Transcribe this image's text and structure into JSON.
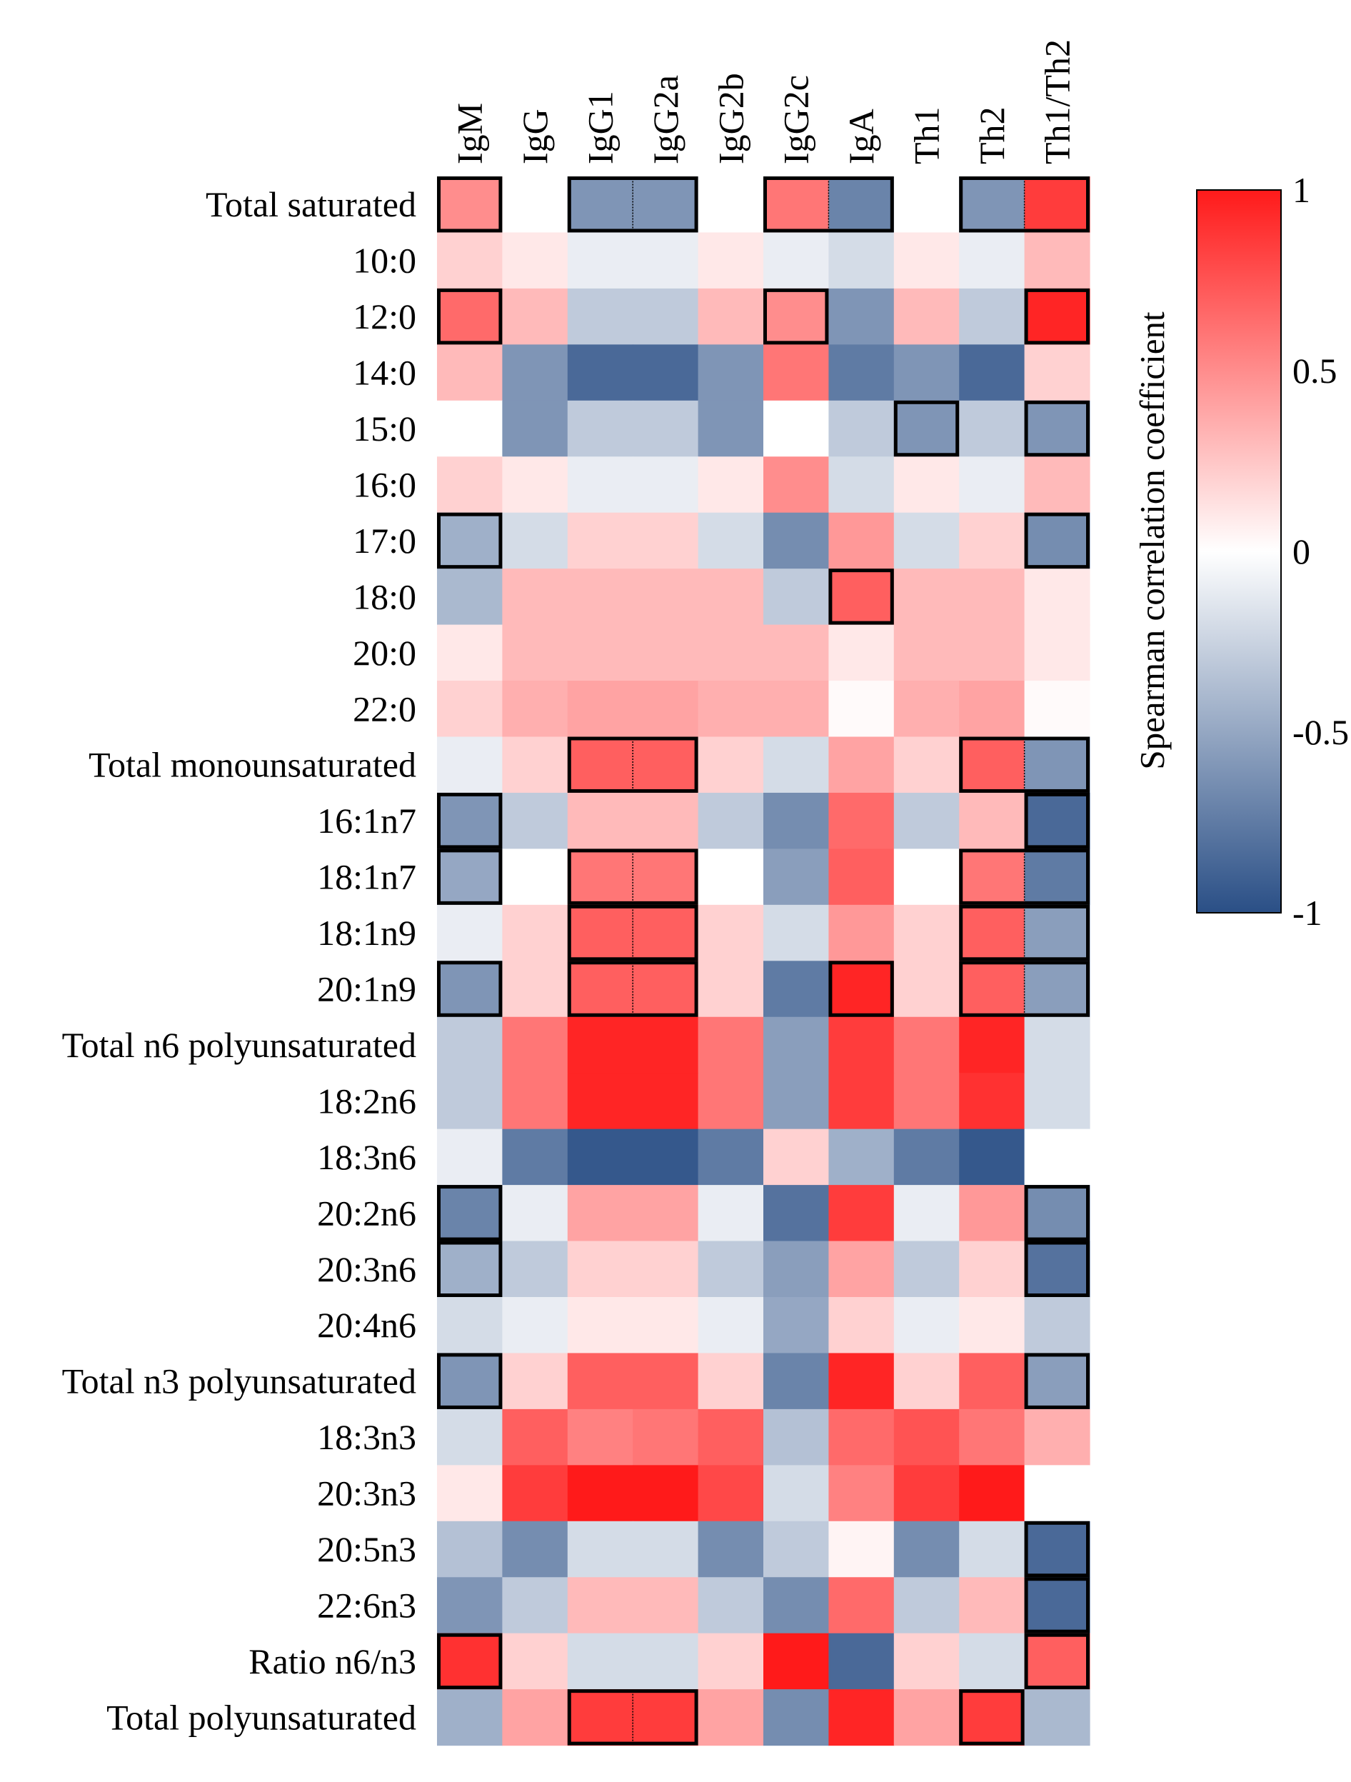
{
  "chart_data": {
    "type": "heatmap",
    "title": "",
    "columns": [
      "IgM",
      "IgG",
      "IgG1",
      "IgG2a",
      "IgG2b",
      "IgG2c",
      "IgA",
      "Th1",
      "Th2",
      "Th1/Th2"
    ],
    "rows": [
      "Total saturated",
      "10:0",
      "12:0",
      "14:0",
      "15:0",
      "16:0",
      "17:0",
      "18:0",
      "20:0",
      "22:0",
      "Total monounsaturated",
      "16:1n7",
      "18:1n7",
      "18:1n9",
      "20:1n9",
      "Total n6 polyunsaturated",
      "18:2n6",
      "18:3n6",
      "20:2n6",
      "20:3n6",
      "20:4n6",
      "Total n3 polyunsaturated",
      "18:3n3",
      "20:3n3",
      "20:5n3",
      "22:6n3",
      "Ratio n6/n3",
      "Total polyunsaturated"
    ],
    "values": [
      [
        0.5,
        0.0,
        -0.6,
        -0.6,
        0.0,
        0.6,
        -0.7,
        0.0,
        -0.6,
        0.85
      ],
      [
        0.2,
        0.1,
        -0.1,
        -0.1,
        0.1,
        -0.1,
        -0.2,
        0.1,
        -0.1,
        0.3
      ],
      [
        0.65,
        0.3,
        -0.3,
        -0.3,
        0.3,
        0.5,
        -0.6,
        0.3,
        -0.3,
        0.95
      ],
      [
        0.3,
        -0.6,
        -0.85,
        -0.85,
        -0.6,
        0.6,
        -0.75,
        -0.6,
        -0.85,
        0.2
      ],
      [
        0.0,
        -0.6,
        -0.3,
        -0.3,
        -0.6,
        0.0,
        -0.3,
        -0.6,
        -0.3,
        -0.6
      ],
      [
        0.2,
        0.1,
        -0.1,
        -0.1,
        0.1,
        0.5,
        -0.2,
        0.1,
        -0.1,
        0.3
      ],
      [
        -0.45,
        -0.2,
        0.2,
        0.2,
        -0.2,
        -0.65,
        0.45,
        -0.2,
        0.2,
        -0.65
      ],
      [
        -0.4,
        0.3,
        0.3,
        0.3,
        0.3,
        -0.3,
        0.7,
        0.3,
        0.3,
        0.1
      ],
      [
        0.1,
        0.3,
        0.3,
        0.3,
        0.3,
        0.3,
        0.1,
        0.3,
        0.3,
        0.1
      ],
      [
        0.2,
        0.35,
        0.4,
        0.4,
        0.35,
        0.35,
        0.02,
        0.35,
        0.4,
        0.02
      ],
      [
        -0.1,
        0.2,
        0.7,
        0.7,
        0.2,
        -0.2,
        0.4,
        0.2,
        0.7,
        -0.6
      ],
      [
        -0.6,
        -0.3,
        0.3,
        0.3,
        -0.3,
        -0.65,
        0.65,
        -0.3,
        0.3,
        -0.85
      ],
      [
        -0.5,
        0.0,
        0.6,
        0.6,
        0.0,
        -0.55,
        0.7,
        0.0,
        0.6,
        -0.75
      ],
      [
        -0.1,
        0.2,
        0.7,
        0.7,
        0.2,
        -0.2,
        0.45,
        0.2,
        0.7,
        -0.55
      ],
      [
        -0.6,
        0.2,
        0.7,
        0.7,
        0.2,
        -0.75,
        0.95,
        0.2,
        0.7,
        -0.55
      ],
      [
        -0.3,
        0.6,
        0.95,
        0.95,
        0.6,
        -0.55,
        0.85,
        0.6,
        0.95,
        -0.2
      ],
      [
        -0.3,
        0.6,
        0.95,
        0.95,
        0.6,
        -0.55,
        0.85,
        0.6,
        0.9,
        -0.2
      ],
      [
        -0.1,
        -0.75,
        -0.95,
        -0.95,
        -0.75,
        0.2,
        -0.45,
        -0.75,
        -0.95,
        0.0
      ],
      [
        -0.7,
        -0.1,
        0.4,
        0.4,
        -0.1,
        -0.8,
        0.85,
        -0.1,
        0.45,
        -0.65
      ],
      [
        -0.45,
        -0.3,
        0.2,
        0.2,
        -0.3,
        -0.55,
        0.4,
        -0.3,
        0.2,
        -0.8
      ],
      [
        -0.2,
        -0.1,
        0.1,
        0.1,
        -0.1,
        -0.5,
        0.2,
        -0.1,
        0.1,
        -0.3
      ],
      [
        -0.6,
        0.2,
        0.7,
        0.7,
        0.2,
        -0.7,
        0.95,
        0.2,
        0.7,
        -0.55
      ],
      [
        -0.2,
        0.7,
        0.55,
        0.6,
        0.7,
        -0.35,
        0.65,
        0.75,
        0.6,
        0.35
      ],
      [
        0.1,
        0.85,
        1.0,
        1.0,
        0.8,
        -0.2,
        0.55,
        0.85,
        1.0,
        0.0
      ],
      [
        -0.35,
        -0.65,
        -0.2,
        -0.2,
        -0.65,
        -0.3,
        0.05,
        -0.65,
        -0.2,
        -0.85
      ],
      [
        -0.6,
        -0.3,
        0.3,
        0.3,
        -0.3,
        -0.65,
        0.65,
        -0.3,
        0.3,
        -0.85
      ],
      [
        0.9,
        0.2,
        -0.2,
        -0.2,
        0.2,
        1.0,
        -0.85,
        0.2,
        -0.2,
        0.7
      ],
      [
        -0.45,
        0.4,
        0.85,
        0.85,
        0.4,
        -0.65,
        0.95,
        0.4,
        0.85,
        -0.4
      ]
    ],
    "significant": [
      [
        true,
        false,
        true,
        true,
        false,
        true,
        true,
        false,
        true,
        true
      ],
      [
        false,
        false,
        false,
        false,
        false,
        false,
        false,
        false,
        false,
        false
      ],
      [
        true,
        false,
        false,
        false,
        false,
        true,
        false,
        false,
        false,
        true
      ],
      [
        false,
        false,
        false,
        false,
        false,
        false,
        false,
        false,
        false,
        false
      ],
      [
        false,
        false,
        false,
        false,
        false,
        false,
        false,
        true,
        false,
        true
      ],
      [
        false,
        false,
        false,
        false,
        false,
        false,
        false,
        false,
        false,
        false
      ],
      [
        true,
        false,
        false,
        false,
        false,
        false,
        false,
        false,
        false,
        true
      ],
      [
        false,
        false,
        false,
        false,
        false,
        false,
        true,
        false,
        false,
        false
      ],
      [
        false,
        false,
        false,
        false,
        false,
        false,
        false,
        false,
        false,
        false
      ],
      [
        false,
        false,
        false,
        false,
        false,
        false,
        false,
        false,
        false,
        false
      ],
      [
        false,
        false,
        true,
        true,
        false,
        false,
        false,
        false,
        true,
        true
      ],
      [
        true,
        false,
        false,
        false,
        false,
        false,
        false,
        false,
        false,
        true
      ],
      [
        true,
        false,
        true,
        true,
        false,
        false,
        false,
        false,
        true,
        true
      ],
      [
        false,
        false,
        true,
        true,
        false,
        false,
        false,
        false,
        true,
        true
      ],
      [
        true,
        false,
        true,
        true,
        false,
        false,
        true,
        false,
        true,
        true
      ],
      [
        false,
        false,
        false,
        false,
        false,
        false,
        false,
        false,
        false,
        false
      ],
      [
        false,
        false,
        false,
        false,
        false,
        false,
        false,
        false,
        false,
        false
      ],
      [
        false,
        false,
        false,
        false,
        false,
        false,
        false,
        false,
        false,
        false
      ],
      [
        true,
        false,
        false,
        false,
        false,
        false,
        false,
        false,
        false,
        true
      ],
      [
        true,
        false,
        false,
        false,
        false,
        false,
        false,
        false,
        false,
        true
      ],
      [
        false,
        false,
        false,
        false,
        false,
        false,
        false,
        false,
        false,
        false
      ],
      [
        true,
        false,
        false,
        false,
        false,
        false,
        false,
        false,
        false,
        true
      ],
      [
        false,
        false,
        false,
        false,
        false,
        false,
        false,
        false,
        false,
        false
      ],
      [
        false,
        false,
        false,
        false,
        false,
        false,
        false,
        false,
        false,
        false
      ],
      [
        false,
        false,
        false,
        false,
        false,
        false,
        false,
        false,
        false,
        true
      ],
      [
        false,
        false,
        false,
        false,
        false,
        false,
        false,
        false,
        false,
        true
      ],
      [
        true,
        false,
        false,
        false,
        false,
        false,
        false,
        false,
        false,
        true
      ],
      [
        false,
        false,
        true,
        true,
        false,
        false,
        false,
        false,
        true,
        false
      ]
    ],
    "colorbar": {
      "label": "Spearman correlation coefficient",
      "min": -1,
      "max": 1,
      "ticks": [
        "1",
        "0.5",
        "0",
        "-0.5",
        "-1"
      ],
      "tick_values": [
        1,
        0.5,
        0,
        -0.5,
        -1
      ],
      "low_color": "#2a4f86",
      "mid_color": "#ffffff",
      "high_color": "#ff1a1a"
    },
    "grid": false
  }
}
